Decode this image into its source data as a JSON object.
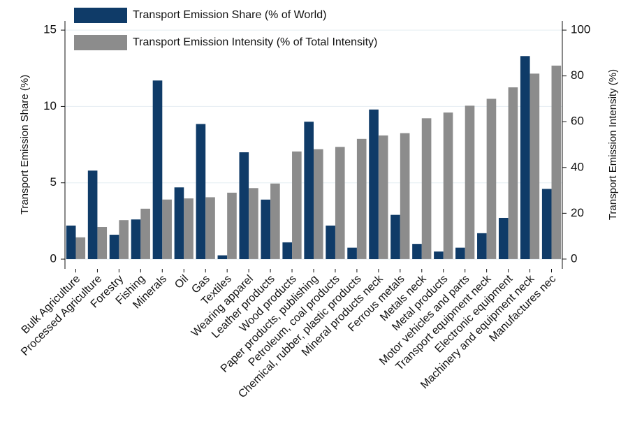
{
  "chart_data": {
    "type": "bar",
    "categories": [
      "Bulk Agriculture",
      "Processed Agriculture",
      "Forestry",
      "Fishing",
      "Minerals",
      "Oil",
      "Gas",
      "Textiles",
      "Wearing apparel",
      "Leather products",
      "Wood products",
      "Paper products, publishing",
      "Petroleum, coal products",
      "Chemical, rubber, plastic products",
      "Mineral products neck",
      "Ferrous metals",
      "Metals neck",
      "Metal products",
      "Motor vehicles and parts",
      "Transport equipment neck",
      "Electronic equipment",
      "Machinery and equipment neck",
      "Manufactures nec"
    ],
    "series": [
      {
        "name": "Transport Emission Share (% of World)",
        "color": "#0f3b68",
        "values": [
          2.2,
          5.8,
          1.6,
          2.6,
          11.7,
          4.7,
          8.85,
          0.25,
          7.0,
          3.9,
          1.1,
          9.0,
          2.2,
          0.75,
          9.8,
          2.9,
          1.0,
          0.5,
          0.75,
          1.7,
          2.7,
          13.3,
          4.6
        ]
      },
      {
        "name": "Transport Emission Intensity (% of Total Intensity)",
        "color": "#8c8c8c",
        "axis": "y2",
        "values": [
          9.5,
          14,
          17,
          22,
          26,
          26.5,
          27,
          29,
          31,
          33,
          47,
          48,
          49,
          52.5,
          54,
          55,
          61.5,
          64,
          67,
          70,
          75,
          81,
          84.5
        ]
      }
    ],
    "y_label": "Transport Emission Share (%)",
    "y2_label": "Transport Emission Intensity (%)",
    "ylim": [
      -0.64,
      15.6
    ],
    "yticks": [
      0,
      5,
      10,
      15
    ],
    "y2lim": [
      -4.3,
      104
    ],
    "y2ticks": [
      0,
      20,
      40,
      60,
      80,
      100
    ],
    "grid": true
  }
}
